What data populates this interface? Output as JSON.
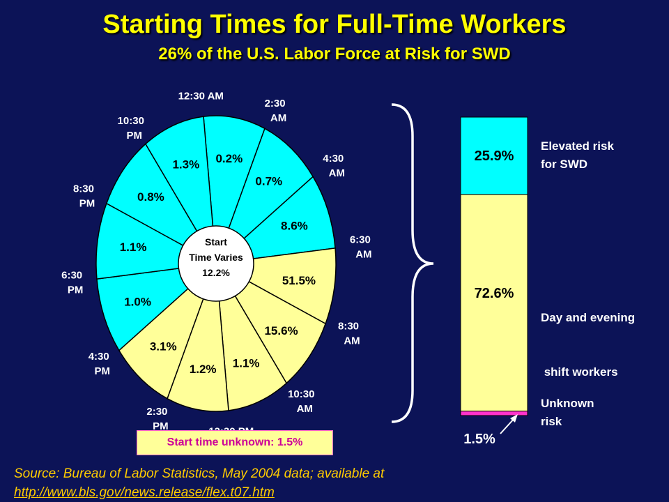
{
  "title": "Starting Times for Full-Time Workers",
  "subtitle": "26% of the U.S. Labor Force at Risk for SWD",
  "colors": {
    "background": "#0c1357",
    "title": "#ffff00",
    "at_risk": "#00ffff",
    "day_evening": "#ffff99",
    "unknown": "#ff33cc"
  },
  "chart_data": [
    {
      "type": "pie",
      "center_label": [
        "Start",
        "Time Varies",
        "12.2%"
      ],
      "slices": [
        {
          "value": 0.2,
          "label": "0.2%",
          "group": "at_risk"
        },
        {
          "value": 0.7,
          "label": "0.7%",
          "group": "at_risk"
        },
        {
          "value": 8.6,
          "label": "8.6%",
          "group": "at_risk"
        },
        {
          "value": 51.5,
          "label": "51.5%",
          "group": "day_evening"
        },
        {
          "value": 15.6,
          "label": "15.6%",
          "group": "day_evening"
        },
        {
          "value": 1.1,
          "label": "1.1%",
          "group": "day_evening"
        },
        {
          "value": 1.2,
          "label": "1.2%",
          "group": "day_evening"
        },
        {
          "value": 3.1,
          "label": "3.1%",
          "group": "day_evening"
        },
        {
          "value": 1.0,
          "label": "1.0%",
          "group": "at_risk"
        },
        {
          "value": 1.1,
          "label": "1.1%",
          "group": "at_risk"
        },
        {
          "value": 0.8,
          "label": "0.8%",
          "group": "at_risk"
        },
        {
          "value": 1.3,
          "label": "1.3%",
          "group": "at_risk"
        }
      ],
      "time_labels": [
        "12:30 AM",
        "2:30 AM",
        "4:30 AM",
        "6:30 AM",
        "8:30 AM",
        "10:30 AM",
        "12:30 PM",
        "2:30 PM",
        "4:30 PM",
        "6:30 PM",
        "8:30 PM",
        "10:30 PM"
      ],
      "unknown_note": "Start time unknown: 1.5%"
    },
    {
      "type": "bar",
      "stacked": true,
      "segments": [
        {
          "value": 1.5,
          "label": "1.5%",
          "name": "Unknown risk",
          "group": "unknown"
        },
        {
          "value": 72.6,
          "label": "72.6%",
          "name": "Day and evening shift workers",
          "group": "day_evening"
        },
        {
          "value": 25.9,
          "label": "25.9%",
          "name": "Elevated risk for SWD",
          "group": "at_risk"
        }
      ],
      "ylim": [
        0,
        100
      ]
    }
  ],
  "legend": {
    "elevated": [
      "Elevated risk",
      "for SWD"
    ],
    "day_evening": [
      "Day and evening",
      " shift workers"
    ],
    "unknown": [
      "Unknown",
      "risk"
    ]
  },
  "source": {
    "text": "Source: Bureau of Labor Statistics, May 2004 data; available at",
    "link": "http://www.bls.gov/news.release/flex.t07.htm"
  }
}
